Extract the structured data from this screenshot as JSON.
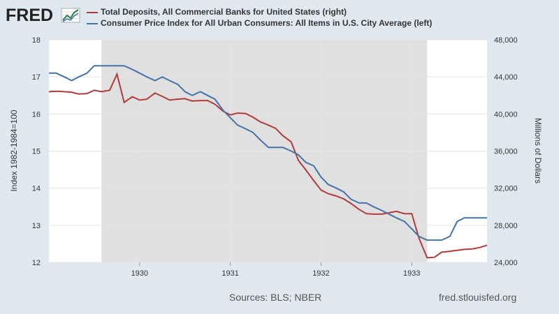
{
  "logo_text": "FRED",
  "colors": {
    "deposits": "#b23a3a",
    "cpi": "#4573a7",
    "recession": "#e0e0e0",
    "background": "#e1e9f0"
  },
  "footer": {
    "sources": "Sources: BLS; NBER",
    "site": "fred.stlouisfed.org"
  },
  "chart_data": {
    "type": "line",
    "recession_shading": {
      "start": 1929.58,
      "end": 1933.17
    },
    "x_ticks": [
      "1930",
      "1931",
      "1932",
      "1933"
    ],
    "x_range": [
      1929.0,
      1933.83
    ],
    "left_axis": {
      "label": "Index 1982-1984=100",
      "range": [
        12,
        18
      ],
      "ticks": [
        "12",
        "13",
        "14",
        "15",
        "16",
        "17",
        "18"
      ]
    },
    "right_axis": {
      "label": "Millions of Dollars",
      "range": [
        24000,
        48000
      ],
      "ticks": [
        "24,000",
        "28,000",
        "32,000",
        "36,000",
        "40,000",
        "44,000",
        "48,000"
      ]
    },
    "series": [
      {
        "name": "Total Deposits, All Commercial Banks for United States (right)",
        "axis": "right",
        "x": [
          1929.0,
          1929.08,
          1929.17,
          1929.25,
          1929.33,
          1929.42,
          1929.5,
          1929.58,
          1929.67,
          1929.75,
          1929.83,
          1929.92,
          1930.0,
          1930.08,
          1930.17,
          1930.25,
          1930.33,
          1930.42,
          1930.5,
          1930.58,
          1930.67,
          1930.75,
          1930.83,
          1930.92,
          1931.0,
          1931.08,
          1931.17,
          1931.25,
          1931.33,
          1931.42,
          1931.5,
          1931.58,
          1931.67,
          1931.75,
          1931.83,
          1931.92,
          1932.0,
          1932.08,
          1932.17,
          1932.25,
          1932.33,
          1932.42,
          1932.5,
          1932.58,
          1932.67,
          1932.75,
          1932.83,
          1932.92,
          1933.0,
          1933.08,
          1933.17,
          1933.25,
          1933.33,
          1933.42,
          1933.5,
          1933.58,
          1933.67,
          1933.75,
          1933.83
        ],
        "values": [
          42400,
          42450,
          42400,
          42350,
          42150,
          42200,
          42550,
          42400,
          42550,
          44300,
          41250,
          41850,
          41500,
          41600,
          42250,
          41900,
          41500,
          41600,
          41650,
          41400,
          41450,
          41450,
          41050,
          40300,
          39900,
          40100,
          40050,
          39650,
          39150,
          38800,
          38450,
          37650,
          37000,
          35000,
          34000,
          32800,
          31800,
          31400,
          31150,
          30850,
          30350,
          29700,
          29250,
          29200,
          29200,
          29350,
          29500,
          29250,
          29250,
          26600,
          24500,
          24550,
          25100,
          25200,
          25300,
          25400,
          25450,
          25600,
          25850
        ]
      },
      {
        "name": "Consumer Price Index for All Urban Consumers: All Items in U.S. City Average (left)",
        "axis": "left",
        "x": [
          1929.0,
          1929.08,
          1929.17,
          1929.25,
          1929.33,
          1929.42,
          1929.5,
          1929.58,
          1929.67,
          1929.75,
          1929.83,
          1929.92,
          1930.0,
          1930.08,
          1930.17,
          1930.25,
          1930.33,
          1930.42,
          1930.5,
          1930.58,
          1930.67,
          1930.75,
          1930.83,
          1930.92,
          1931.0,
          1931.08,
          1931.17,
          1931.25,
          1931.33,
          1931.42,
          1931.5,
          1931.58,
          1931.67,
          1931.75,
          1931.83,
          1931.92,
          1932.0,
          1932.08,
          1932.17,
          1932.25,
          1932.33,
          1932.42,
          1932.5,
          1932.58,
          1932.67,
          1932.75,
          1932.83,
          1932.92,
          1933.0,
          1933.08,
          1933.17,
          1933.25,
          1933.33,
          1933.42,
          1933.5,
          1933.58,
          1933.67,
          1933.75,
          1933.83
        ],
        "values": [
          17.1,
          17.1,
          17.0,
          16.9,
          17.0,
          17.1,
          17.3,
          17.3,
          17.3,
          17.3,
          17.3,
          17.2,
          17.1,
          17.0,
          16.9,
          17.0,
          16.9,
          16.8,
          16.6,
          16.5,
          16.6,
          16.5,
          16.4,
          16.1,
          15.9,
          15.7,
          15.6,
          15.5,
          15.3,
          15.1,
          15.1,
          15.1,
          15.0,
          14.9,
          14.7,
          14.6,
          14.3,
          14.1,
          14.0,
          13.9,
          13.7,
          13.6,
          13.6,
          13.5,
          13.4,
          13.3,
          13.2,
          13.1,
          12.9,
          12.7,
          12.6,
          12.6,
          12.6,
          12.7,
          13.1,
          13.2,
          13.2,
          13.2,
          13.2
        ]
      }
    ]
  }
}
